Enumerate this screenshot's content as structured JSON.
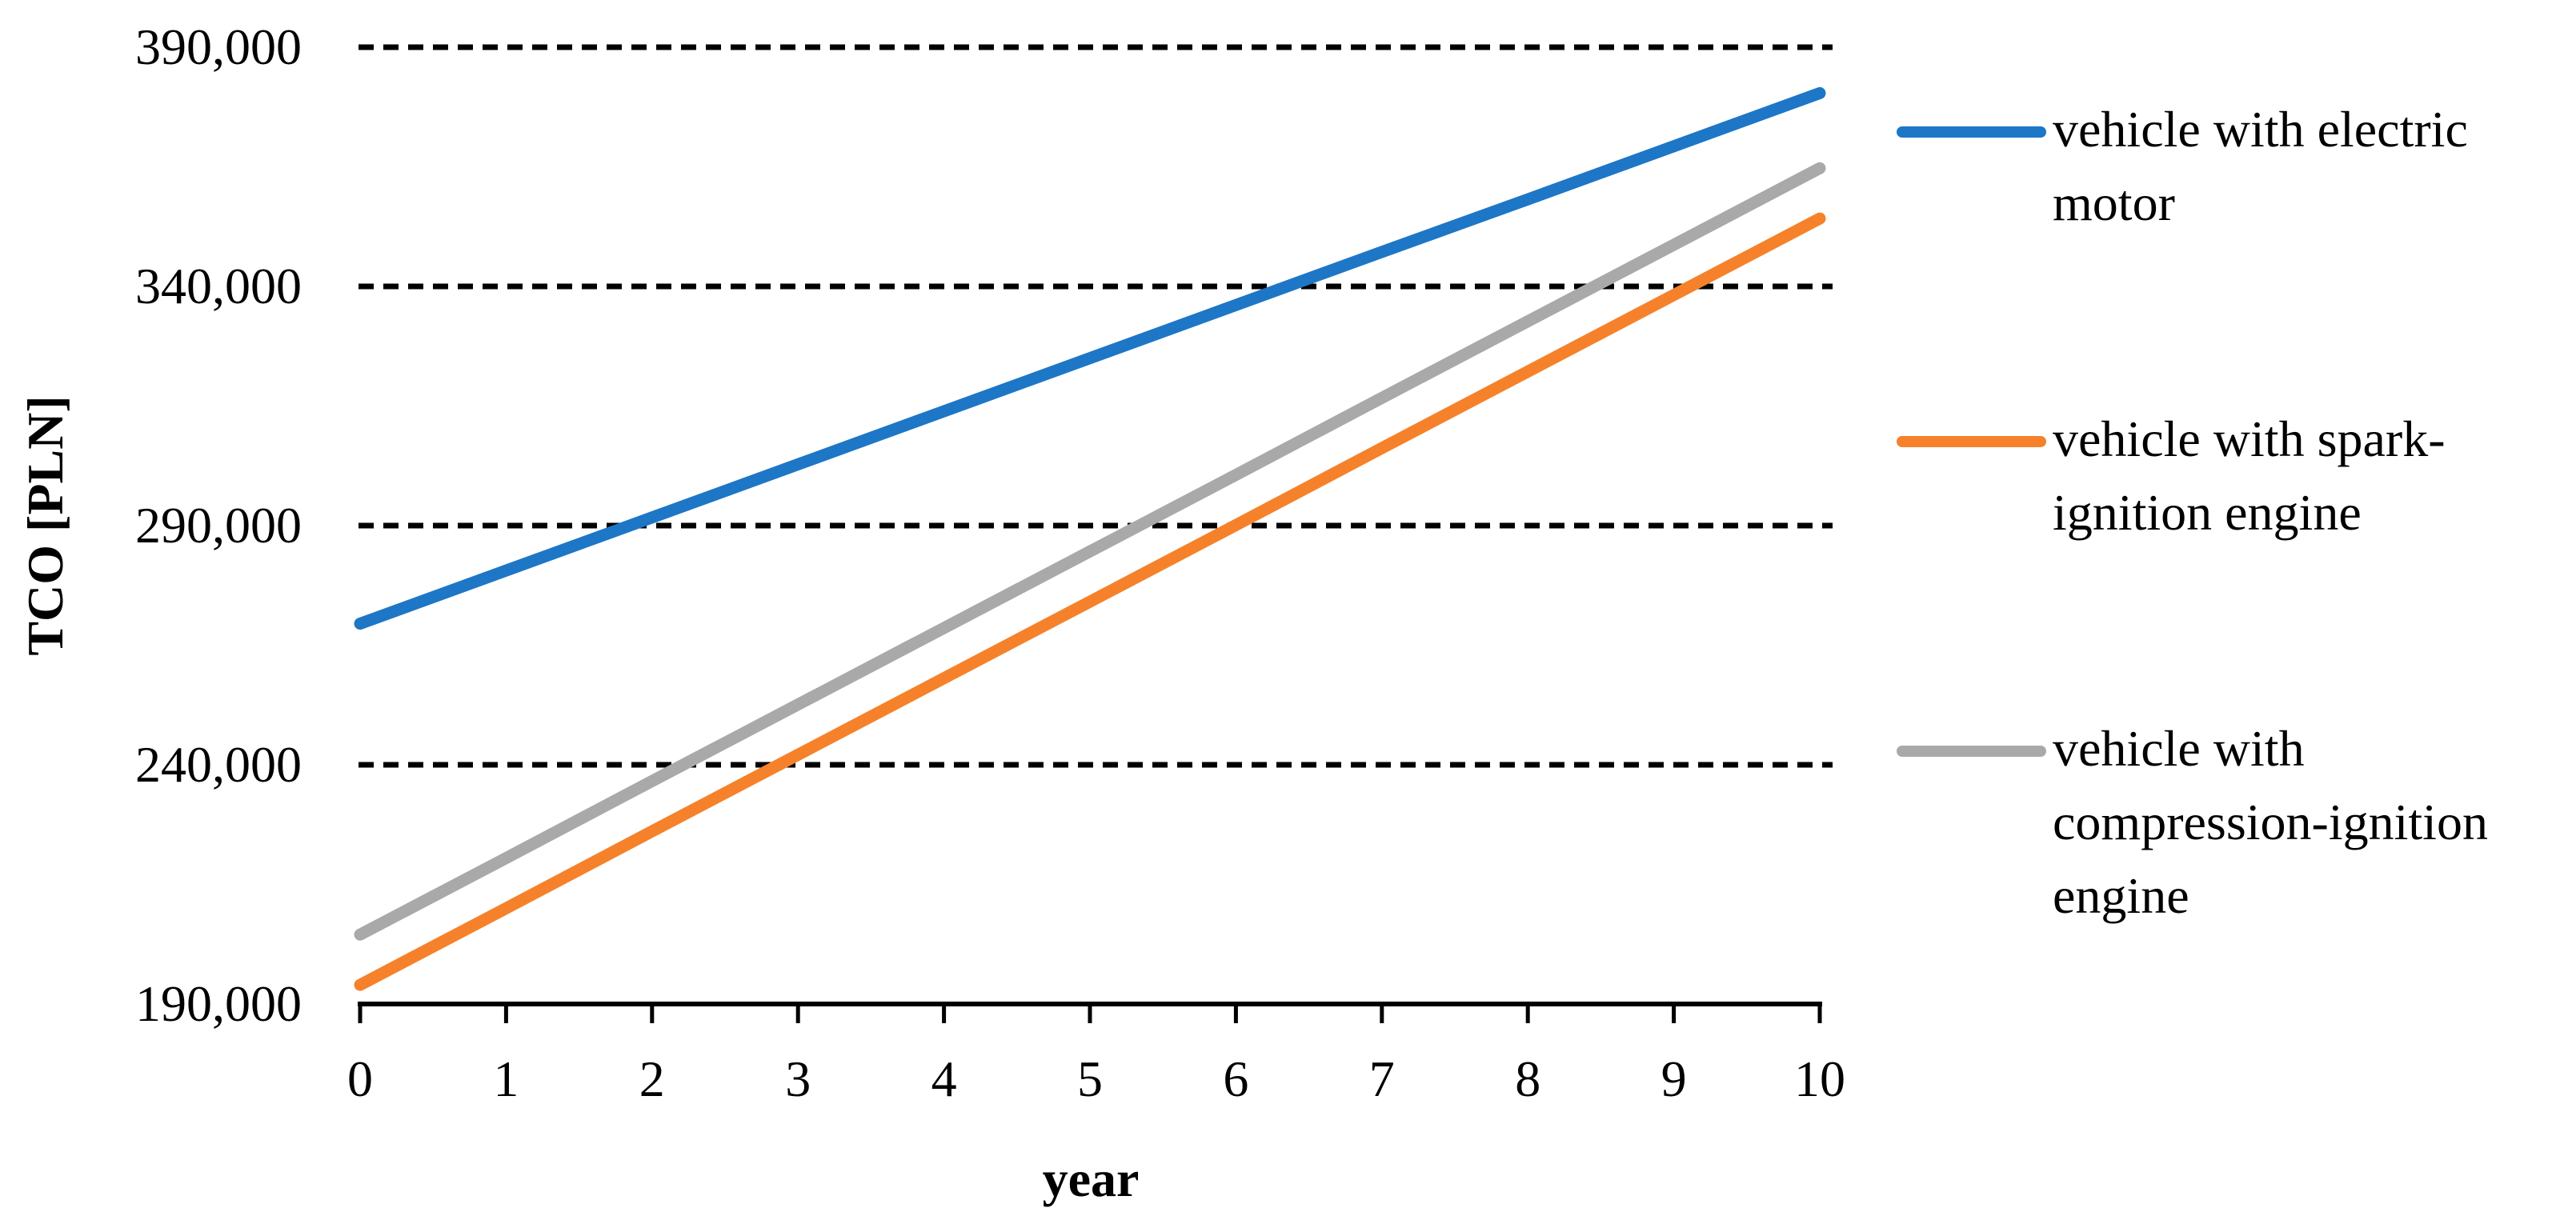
{
  "chart_data": {
    "type": "line",
    "title": "",
    "xlabel": "year",
    "ylabel": "TCO [PLN]",
    "xlim": [
      0,
      10
    ],
    "ylim": [
      190000,
      390000
    ],
    "x": [
      0,
      1,
      2,
      3,
      4,
      5,
      6,
      7,
      8,
      9,
      10
    ],
    "x_tick_labels": [
      "0",
      "1",
      "2",
      "3",
      "4",
      "5",
      "6",
      "7",
      "8",
      "9",
      "10"
    ],
    "y_ticks": [
      190000,
      240000,
      290000,
      340000,
      390000
    ],
    "y_tick_labels": [
      "190,000",
      "240,000",
      "290,000",
      "340,000",
      "390,000"
    ],
    "grid": "horizontal-dashed",
    "grid_color": "#000000",
    "axis_color": "#000000",
    "legend_position": "right",
    "series": [
      {
        "name": "vehicle with electric motor",
        "label_lines": [
          "vehicle with electric",
          "motor"
        ],
        "color": "#1E76C6",
        "values": [
          269500,
          280600,
          291700,
          302800,
          313900,
          325000,
          336100,
          347200,
          358200,
          369300,
          380400
        ]
      },
      {
        "name": "vehicle with spark-ignition engine",
        "label_lines": [
          "vehicle with spark-",
          "ignition engine"
        ],
        "color": "#F5822A",
        "values": [
          194000,
          210000,
          226100,
          242100,
          258100,
          274100,
          290100,
          306200,
          322200,
          338200,
          354200
        ]
      },
      {
        "name": "vehicle with compression-ignition engine",
        "label_lines": [
          "vehicle with",
          "compression-ignition",
          "engine"
        ],
        "color": "#A9A9A9",
        "values": [
          204500,
          220500,
          236600,
          252600,
          268600,
          284600,
          300600,
          316700,
          332700,
          348700,
          364700
        ]
      }
    ]
  }
}
